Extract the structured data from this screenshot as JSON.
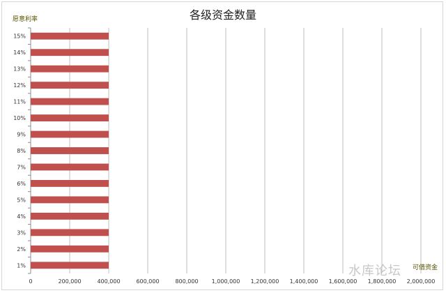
{
  "chart_data": {
    "type": "bar",
    "orientation": "horizontal",
    "title": "各级资金数量",
    "ylabel": "愿意利率",
    "xlabel": "可借资金",
    "categories": [
      "1%",
      "2%",
      "3%",
      "4%",
      "5%",
      "6%",
      "7%",
      "8%",
      "9%",
      "10%",
      "11%",
      "12%",
      "13%",
      "14%",
      "15%"
    ],
    "series": [
      {
        "values": [
          400000,
          400000,
          400000,
          400000,
          400000,
          400000,
          400000,
          400000,
          400000,
          400000,
          400000,
          400000,
          400000,
          400000,
          400000
        ],
        "color": "#c0504d"
      }
    ],
    "xlim": [
      0,
      2100000
    ],
    "xticks": [
      0,
      200000,
      400000,
      600000,
      800000,
      1000000,
      1200000,
      1400000,
      1600000,
      1800000,
      2000000
    ],
    "xtick_labels": [
      "0",
      "200,000",
      "400,000",
      "600,000",
      "800,000",
      "1,000,000",
      "1,200,000",
      "1,400,000",
      "1,600,000",
      "1,800,000",
      "2,000,000"
    ],
    "grid": "vertical"
  },
  "watermark": "水库论坛"
}
